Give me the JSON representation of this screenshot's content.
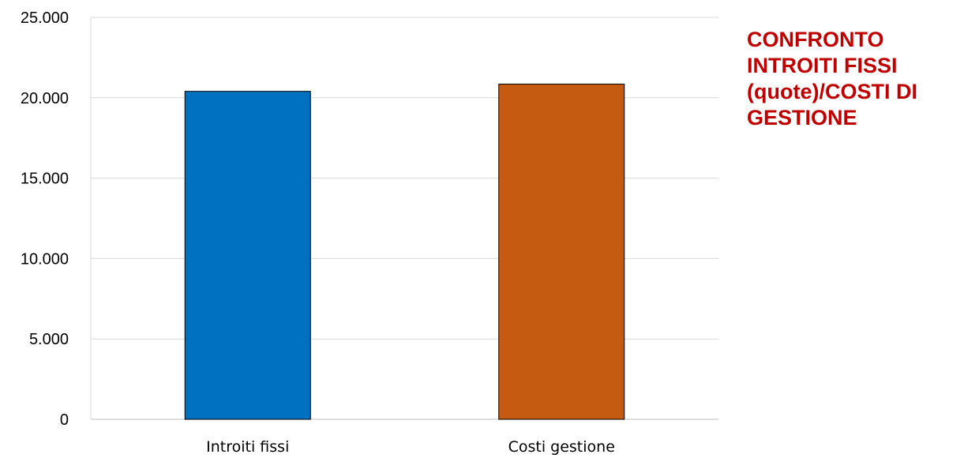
{
  "chart_data": {
    "type": "bar",
    "categories": [
      "Introiti fissi",
      "Costi gestione"
    ],
    "values": [
      20400,
      20850
    ],
    "colors": [
      "#0070c0",
      "#c55a11"
    ],
    "ylim": [
      0,
      25000
    ],
    "yticks": [
      0,
      5000,
      10000,
      15000,
      20000,
      25000
    ],
    "ytick_labels": [
      "0",
      "5.000",
      "10.000",
      "15.000",
      "20.000",
      "25.000"
    ],
    "grid": true,
    "legend": "none",
    "title_lines": [
      "CONFRONTO",
      "INTROITI FISSI",
      "(quote)/COSTI DI",
      "GESTIONE"
    ],
    "title_color": "#c00000"
  }
}
